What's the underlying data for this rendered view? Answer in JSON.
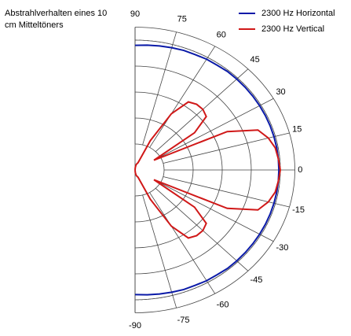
{
  "chart_data": {
    "type": "polar",
    "title": "Abstrahlverhalten eines 10 cm Mitteltöners",
    "angles": [
      -90,
      -85,
      -80,
      -75,
      -70,
      -65,
      -60,
      -55,
      -50,
      -45,
      -40,
      -35,
      -30,
      -25,
      -20,
      -15,
      -10,
      -5,
      0,
      5,
      10,
      15,
      20,
      25,
      30,
      35,
      40,
      45,
      50,
      55,
      60,
      65,
      70,
      75,
      80,
      85,
      90
    ],
    "series": [
      {
        "name": "2300 Hz Horizontal",
        "color": "#0a1aa8",
        "values": [
          0.96,
          0.965,
          0.97,
          0.975,
          0.98,
          0.98,
          0.985,
          0.985,
          0.99,
          0.99,
          0.99,
          0.99,
          0.99,
          0.99,
          0.99,
          0.99,
          0.99,
          0.99,
          0.99,
          0.99,
          0.99,
          0.99,
          0.99,
          0.99,
          0.99,
          0.99,
          0.99,
          0.99,
          0.99,
          0.985,
          0.985,
          0.98,
          0.98,
          0.975,
          0.97,
          0.965,
          0.96
        ]
      },
      {
        "name": "2300 Hz Vertical",
        "color": "#d01818",
        "values": [
          0,
          0.02,
          0.04,
          0.05,
          0.06,
          0.25,
          0.5,
          0.64,
          0.66,
          0.66,
          0.64,
          0.5,
          0.15,
          0.7,
          0.9,
          0.95,
          0.98,
          0.99,
          1.0,
          0.99,
          0.98,
          0.95,
          0.9,
          0.7,
          0.15,
          0.5,
          0.64,
          0.66,
          0.66,
          0.64,
          0.5,
          0.25,
          0.06,
          0.05,
          0.04,
          0.02,
          0
        ]
      }
    ],
    "rlim": [
      0,
      1.1
    ],
    "rgrid": [
      0.2,
      0.4,
      0.6,
      0.8,
      1.0,
      1.1
    ],
    "reference_circle": 1.0,
    "angle_ticks": [
      90,
      75,
      60,
      45,
      30,
      15,
      0,
      -15,
      -30,
      -45,
      -60,
      -75,
      -90
    ],
    "legend": "top-right"
  }
}
